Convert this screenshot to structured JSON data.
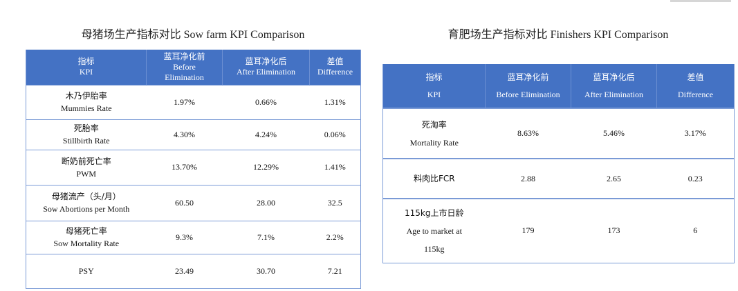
{
  "sow": {
    "title": "母猪场生产指标对比 Sow farm KPI Comparison",
    "headers": [
      {
        "cn": "指标",
        "en": "KPI"
      },
      {
        "cn": "蓝耳净化前",
        "en": "Before Elimination"
      },
      {
        "cn": "蓝耳净化后",
        "en": "After Elimination"
      },
      {
        "cn": "差值",
        "en": "Difference"
      }
    ],
    "rows": [
      {
        "cn": "木乃伊胎率",
        "en": "Mummies Rate",
        "before": "1.97%",
        "after": "0.66%",
        "diff": "1.31%"
      },
      {
        "cn": "死胎率",
        "en": "Stillbirth Rate",
        "before": "4.30%",
        "after": "4.24%",
        "diff": "0.06%"
      },
      {
        "cn": "断奶前死亡率",
        "en": "PWM",
        "before": "13.70%",
        "after": "12.29%",
        "diff": "1.41%"
      },
      {
        "cn": "母猪流产（头/月）",
        "en": "Sow Abortions per Month",
        "before": "60.50",
        "after": "28.00",
        "diff": "32.5"
      },
      {
        "cn": "母猪死亡率",
        "en": "Sow Mortality Rate",
        "before": "9.3%",
        "after": "7.1%",
        "diff": "2.2%"
      },
      {
        "cn": "",
        "en": "PSY",
        "before": "23.49",
        "after": "30.70",
        "diff": "7.21"
      }
    ]
  },
  "finisher": {
    "title": "育肥场生产指标对比 Finishers KPI Comparison",
    "headers": [
      {
        "cn": "指标",
        "en": "KPI"
      },
      {
        "cn": "蓝耳净化前",
        "en": "Before Elimination"
      },
      {
        "cn": "蓝耳净化后",
        "en": "After Elimination"
      },
      {
        "cn": "差值",
        "en": "Difference"
      }
    ],
    "rows": [
      {
        "lines": [
          "死淘率",
          "Mortality Rate"
        ],
        "before": "8.63%",
        "after": "5.46%",
        "diff": "3.17%"
      },
      {
        "lines": [
          "料肉比FCR"
        ],
        "before": "2.88",
        "after": "2.65",
        "diff": "0.23"
      },
      {
        "lines": [
          "115kg上市日龄",
          "Age to market at",
          "115kg"
        ],
        "before": "179",
        "after": "173",
        "diff": "6"
      }
    ]
  },
  "colors": {
    "header_bg": "#4472c4",
    "border": "#7a9ad6"
  }
}
